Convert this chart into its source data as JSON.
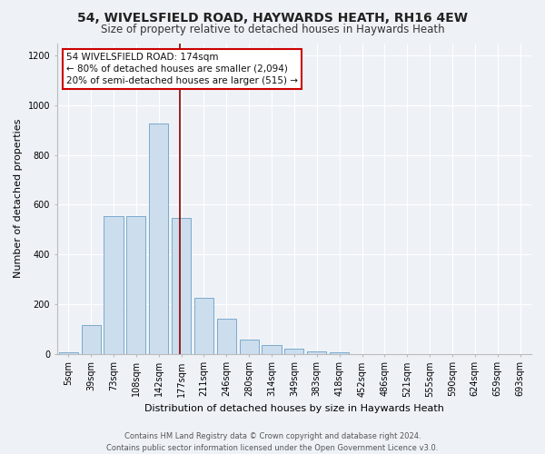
{
  "title": "54, WIVELSFIELD ROAD, HAYWARDS HEATH, RH16 4EW",
  "subtitle": "Size of property relative to detached houses in Haywards Heath",
  "xlabel": "Distribution of detached houses by size in Haywards Heath",
  "ylabel": "Number of detached properties",
  "bar_labels": [
    "5sqm",
    "39sqm",
    "73sqm",
    "108sqm",
    "142sqm",
    "177sqm",
    "211sqm",
    "246sqm",
    "280sqm",
    "314sqm",
    "349sqm",
    "383sqm",
    "418sqm",
    "452sqm",
    "486sqm",
    "521sqm",
    "555sqm",
    "590sqm",
    "624sqm",
    "659sqm",
    "693sqm"
  ],
  "bar_values": [
    5,
    115,
    555,
    555,
    925,
    545,
    225,
    140,
    58,
    35,
    20,
    10,
    5,
    0,
    0,
    0,
    0,
    0,
    0,
    0,
    0
  ],
  "bar_color": "#ccdded",
  "bar_edgecolor": "#7aaacc",
  "vline_color": "#8b0000",
  "vline_x": 4.93,
  "ylim": [
    0,
    1250
  ],
  "yticks": [
    0,
    200,
    400,
    600,
    800,
    1000,
    1200
  ],
  "annotation_text": "54 WIVELSFIELD ROAD: 174sqm\n← 80% of detached houses are smaller (2,094)\n20% of semi-detached houses are larger (515) →",
  "annotation_box_facecolor": "#ffffff",
  "annotation_box_edgecolor": "#cc0000",
  "footer_line1": "Contains HM Land Registry data © Crown copyright and database right 2024.",
  "footer_line2": "Contains public sector information licensed under the Open Government Licence v3.0.",
  "background_color": "#eef2f7",
  "title_fontsize": 10,
  "subtitle_fontsize": 8.5,
  "ylabel_fontsize": 8,
  "xlabel_fontsize": 8,
  "tick_fontsize": 7,
  "annotation_fontsize": 7.5,
  "footer_fontsize": 6
}
